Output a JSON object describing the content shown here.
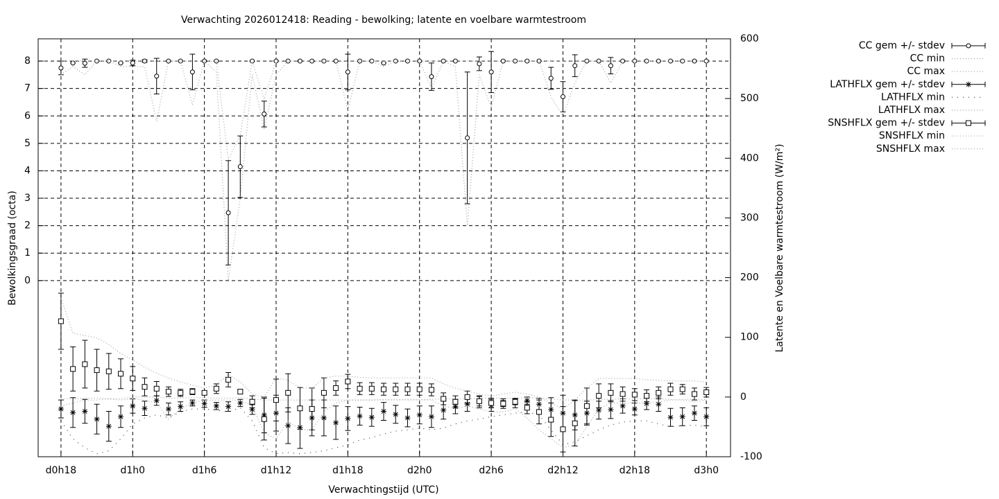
{
  "chart_data": {
    "type": "line",
    "title": "Verwachting 2026012418: Reading - bewolking; latente en voelbare warmtestroom",
    "xlabel": "Verwachtingstijd (UTC)",
    "ylabel": "Bewolkingsgraad (octa)",
    "y2label": "Latente en Voelbare warmtestroom (W/m²)",
    "grid": true,
    "legend": "outside-right",
    "xlim": [
      16.09,
      74.02
    ],
    "xticks": [
      {
        "value": 18,
        "label": "d0h18"
      },
      {
        "value": 24,
        "label": "d1h0"
      },
      {
        "value": 30,
        "label": "d1h6"
      },
      {
        "value": 36,
        "label": "d1h12"
      },
      {
        "value": 42,
        "label": "d1h18"
      },
      {
        "value": 48,
        "label": "d2h0"
      },
      {
        "value": 54,
        "label": "d2h6"
      },
      {
        "value": 60,
        "label": "d2h12"
      },
      {
        "value": 66,
        "label": "d2h18"
      },
      {
        "value": 72,
        "label": "d3h0"
      }
    ],
    "ylim": [
      -6.42,
      8.81
    ],
    "yticks": [
      0,
      1,
      2,
      3,
      4,
      5,
      6,
      7,
      8
    ],
    "y2lim": [
      -100,
      600
    ],
    "y2ticks": [
      -100,
      0,
      100,
      200,
      300,
      400,
      500,
      600
    ],
    "x": [
      18,
      19,
      20,
      21,
      22,
      23,
      24,
      25,
      26,
      27,
      28,
      29,
      30,
      31,
      32,
      33,
      34,
      35,
      36,
      37,
      38,
      39,
      40,
      41,
      42,
      43,
      44,
      45,
      46,
      47,
      48,
      49,
      50,
      51,
      52,
      53,
      54,
      55,
      56,
      57,
      58,
      59,
      60,
      61,
      62,
      63,
      64,
      65,
      66,
      67,
      68,
      69,
      70,
      71,
      72
    ],
    "series": [
      {
        "name": "CC gem +/- stdev",
        "color": "#000000",
        "style": "errorbars",
        "symbol": "circle",
        "axis": "y",
        "values": [
          7.75,
          7.93,
          7.92,
          8,
          8,
          7.93,
          7.93,
          8,
          7.45,
          8,
          8,
          7.6,
          8,
          8,
          2.47,
          4.15,
          8,
          6.07,
          8,
          8,
          8,
          8,
          8,
          8,
          7.6,
          8,
          8,
          7.93,
          8,
          8,
          8,
          7.43,
          8,
          8,
          5.2,
          7.9,
          7.6,
          8,
          8,
          8,
          8,
          7.37,
          6.7,
          7.83,
          8,
          8,
          7.83,
          8,
          8,
          8,
          8,
          8,
          8,
          8,
          8
        ],
        "errors": [
          0.25,
          0,
          0.15,
          0,
          0,
          0,
          0.1,
          0.05,
          0.65,
          0,
          0,
          0.65,
          0,
          0,
          1.9,
          1.12,
          0,
          0.47,
          0,
          0,
          0,
          0,
          0,
          0,
          0.65,
          0,
          0,
          0,
          0,
          0,
          0,
          0.5,
          0,
          0,
          2.4,
          0.25,
          0.75,
          0,
          0,
          0,
          0,
          0.4,
          0.55,
          0.4,
          0,
          0,
          0.3,
          0,
          0,
          0,
          0,
          0,
          0,
          0,
          0
        ]
      },
      {
        "name": "CC min",
        "color": "#a0a0a0",
        "style": "dotted",
        "axis": "y",
        "values": [
          7.5,
          7.8,
          7.5,
          8,
          8,
          7.8,
          7.8,
          7.8,
          5.8,
          8,
          8,
          6.4,
          8,
          7.6,
          0,
          3,
          7.5,
          5.5,
          7.5,
          8,
          8,
          8,
          8,
          8,
          6.2,
          8,
          8,
          7.8,
          8,
          8,
          8,
          7,
          8,
          7.8,
          2,
          7.5,
          6.3,
          8,
          8,
          8,
          8,
          6.7,
          6,
          7.2,
          8,
          8,
          7.2,
          8,
          8,
          8,
          8,
          8,
          8,
          8,
          8
        ]
      },
      {
        "name": "CC max",
        "color": "#a0a0a0",
        "style": "dotted",
        "axis": "y",
        "values": [
          8,
          8,
          8,
          8,
          8,
          8,
          8,
          8,
          8,
          8,
          8,
          8,
          8,
          8,
          4.4,
          5.3,
          8,
          6.6,
          8,
          8,
          8,
          8,
          8,
          8,
          8,
          8,
          8,
          8,
          8,
          8,
          8,
          8,
          8,
          8,
          8,
          8,
          8,
          8,
          8,
          8,
          8,
          8,
          8,
          8,
          8,
          8,
          8,
          8,
          8,
          8,
          8,
          8,
          8,
          8,
          8
        ]
      },
      {
        "name": "LATHFLX gem +/- stdev",
        "color": "#000000",
        "style": "errorbars",
        "symbol": "star",
        "axis": "y2",
        "values": [
          -20,
          -26,
          -24,
          -37,
          -49,
          -33,
          -15,
          -19,
          -6,
          -20,
          -16,
          -10,
          -11,
          -15,
          -16,
          -10,
          -21,
          -30,
          -27,
          -48,
          -51,
          -35,
          -35,
          -43,
          -36,
          -32,
          -34,
          -24,
          -29,
          -35,
          -30,
          -33,
          -22,
          -16,
          -12,
          -8,
          -14,
          -11,
          -10,
          -6,
          -12,
          -21,
          -27,
          -30,
          -27,
          -22,
          -21,
          -15,
          -20,
          -11,
          -12,
          -34,
          -33,
          -27,
          -33
        ],
        "errors": [
          15,
          25,
          20,
          25,
          25,
          18,
          12,
          12,
          8,
          10,
          8,
          5,
          6,
          6,
          8,
          6,
          8,
          30,
          30,
          30,
          35,
          30,
          30,
          28,
          20,
          15,
          15,
          15,
          15,
          15,
          15,
          18,
          15,
          12,
          12,
          10,
          10,
          8,
          8,
          6,
          10,
          20,
          30,
          25,
          20,
          15,
          15,
          12,
          10,
          10,
          12,
          15,
          15,
          12,
          15
        ]
      },
      {
        "name": "LATHFLX min",
        "color": "#404040",
        "style": "sparse",
        "axis": "y2",
        "values": [
          -40,
          -70,
          -85,
          -95,
          -90,
          -70,
          -45,
          -35,
          -30,
          -35,
          -25,
          -20,
          -20,
          -22,
          -25,
          -18,
          -40,
          -85,
          -95,
          -93,
          -95,
          -93,
          -90,
          -85,
          -80,
          -72,
          -68,
          -62,
          -57,
          -55,
          -52,
          -55,
          -52,
          -45,
          -40,
          -37,
          -33,
          -30,
          -27,
          -25,
          -30,
          -55,
          -80,
          -75,
          -65,
          -55,
          -47,
          -42,
          -40,
          -40,
          -45,
          -50,
          -48,
          -47,
          -50
        ]
      },
      {
        "name": "LATHFLX max",
        "color": "#a0a0a0",
        "style": "dotted",
        "axis": "y2",
        "values": [
          -3,
          -3,
          -2,
          -2,
          -3,
          -3,
          0,
          0,
          0,
          -2,
          -2,
          -1,
          -1,
          -2,
          -2,
          -1,
          -3,
          -5,
          -5,
          -5,
          -5,
          -5,
          -5,
          -5,
          -5,
          -5,
          -5,
          -4,
          -4,
          -4,
          -4,
          -4,
          -3,
          -3,
          -3,
          -2,
          -2,
          -2,
          -2,
          -1,
          -2,
          -3,
          -5,
          -5,
          -5,
          -4,
          -4,
          -3,
          -3,
          -3,
          -3,
          -4,
          -4,
          -4,
          -4
        ]
      },
      {
        "name": "SNSHFLX gem +/- stdev",
        "color": "#000000",
        "style": "errorbars",
        "symbol": "square",
        "axis": "y2",
        "values": [
          127,
          47,
          55,
          45,
          43,
          39,
          31,
          17,
          14,
          9,
          7,
          9,
          7,
          14,
          29,
          9,
          -8,
          -37,
          -5,
          7,
          -19,
          -20,
          7,
          15,
          26,
          14,
          14,
          13,
          13,
          13,
          13,
          12,
          -3,
          -8,
          0,
          -7,
          -10,
          -11,
          -8,
          -18,
          -25,
          -38,
          -54,
          -44,
          -15,
          2,
          7,
          5,
          4,
          2,
          7,
          13,
          13,
          5,
          8
        ],
        "errors": [
          47,
          37,
          40,
          35,
          30,
          25,
          20,
          15,
          12,
          8,
          6,
          5,
          3,
          8,
          12,
          3,
          10,
          35,
          35,
          32,
          35,
          35,
          25,
          12,
          12,
          10,
          10,
          10,
          10,
          10,
          10,
          10,
          10,
          10,
          10,
          8,
          8,
          5,
          5,
          10,
          20,
          28,
          38,
          38,
          30,
          20,
          15,
          12,
          10,
          10,
          10,
          10,
          8,
          10,
          8
        ]
      },
      {
        "name": "SNSHFLX min",
        "color": "#a0a0a0",
        "style": "dotted",
        "axis": "y2",
        "values": [
          -15,
          -10,
          -5,
          -5,
          -3,
          -5,
          -3,
          -5,
          -10,
          -37,
          -20,
          -10,
          -5,
          -5,
          -5,
          -5,
          -15,
          -60,
          -70,
          -40,
          -55,
          -55,
          -25,
          -10,
          -5,
          -5,
          -5,
          -5,
          -5,
          -5,
          -5,
          -5,
          -15,
          -20,
          -15,
          -20,
          -25,
          -25,
          -20,
          -35,
          -55,
          -70,
          -85,
          -80,
          -50,
          -20,
          -10,
          -10,
          -10,
          -10,
          -8,
          -5,
          -5,
          -8,
          -5
        ]
      },
      {
        "name": "SNSHFLX max",
        "color": "#a0a0a0",
        "style": "dotted",
        "axis": "y2",
        "values": [
          166,
          107,
          103,
          99,
          88,
          73,
          62,
          50,
          40,
          32,
          25,
          20,
          15,
          20,
          38,
          25,
          5,
          0,
          32,
          28,
          15,
          15,
          32,
          35,
          35,
          33,
          32,
          32,
          32,
          32,
          32,
          32,
          22,
          15,
          10,
          5,
          2,
          5,
          8,
          5,
          0,
          -10,
          -20,
          -5,
          15,
          31,
          31,
          31,
          31,
          29,
          28,
          27,
          27,
          27,
          25
        ]
      }
    ]
  }
}
